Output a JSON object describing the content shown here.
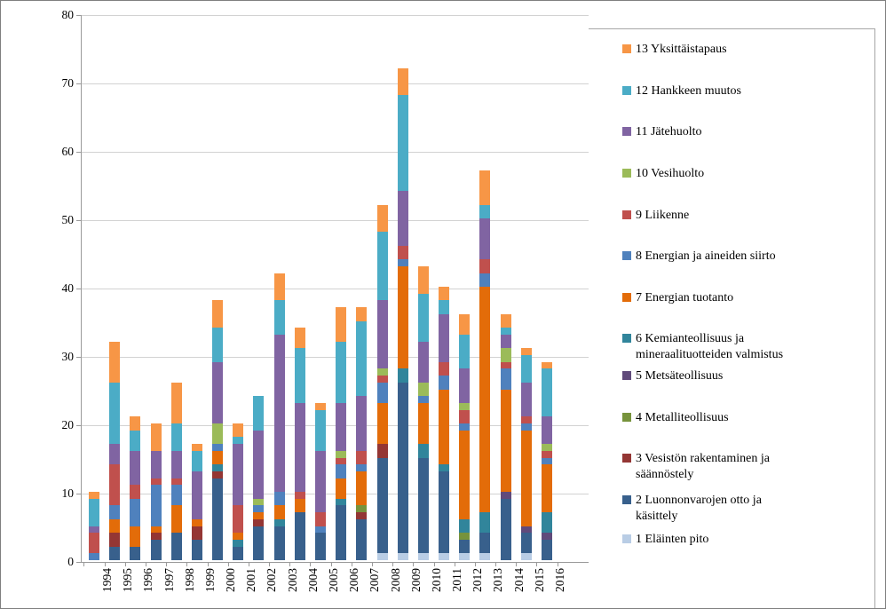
{
  "chart_data": {
    "type": "bar",
    "stacked": true,
    "title": "",
    "xlabel": "",
    "ylabel": "",
    "ylim": [
      0,
      80
    ],
    "yticks": [
      0,
      10,
      20,
      30,
      40,
      50,
      60,
      70,
      80
    ],
    "grid": "horizontal",
    "legend_position": "right",
    "categories": [
      "1994",
      "1995",
      "1996",
      "1997",
      "1998",
      "1999",
      "2000",
      "2001",
      "2002",
      "2003",
      "2004",
      "2005",
      "2006",
      "2007",
      "2008",
      "2009",
      "2010",
      "2011",
      "2012",
      "2013",
      "2014",
      "2015",
      "2016"
    ],
    "series": [
      {
        "key": 1,
        "label": "1 Eläinten pito",
        "color": "#B9CDE5",
        "values": [
          0,
          0,
          0,
          0,
          0,
          0,
          0,
          0,
          0,
          0,
          0,
          0,
          0,
          0,
          1,
          1,
          1,
          1,
          1,
          1,
          0,
          1,
          0
        ]
      },
      {
        "key": 2,
        "label": "2 Luonnonvarojen otto ja käsittely",
        "color": "#38608C",
        "values": [
          0,
          2,
          2,
          3,
          4,
          3,
          12,
          2,
          5,
          5,
          7,
          4,
          8,
          6,
          14,
          25,
          14,
          12,
          2,
          3,
          9,
          3,
          3
        ]
      },
      {
        "key": 3,
        "label": "3 Vesistön rakentaminen ja säännöstely",
        "color": "#943634",
        "values": [
          0,
          2,
          0,
          1,
          0,
          2,
          1,
          0,
          1,
          0,
          0,
          0,
          0,
          1,
          2,
          0,
          0,
          0,
          0,
          0,
          0,
          0,
          0
        ]
      },
      {
        "key": 4,
        "label": "4 Metalliteollisuus",
        "color": "#77933C",
        "values": [
          0,
          0,
          0,
          0,
          0,
          0,
          0,
          0,
          0,
          0,
          0,
          0,
          0,
          1,
          0,
          0,
          0,
          0,
          1,
          0,
          0,
          0,
          0
        ]
      },
      {
        "key": 5,
        "label": "5 Metsäteollisuus",
        "color": "#604A7B",
        "values": [
          0,
          0,
          0,
          0,
          0,
          0,
          0,
          0,
          0,
          0,
          0,
          0,
          0,
          0,
          0,
          0,
          0,
          0,
          0,
          0,
          1,
          1,
          1
        ]
      },
      {
        "key": 6,
        "label": "6 Kemianteollisuus ja mineraalituotteiden valmistus",
        "color": "#31859B",
        "values": [
          0,
          0,
          0,
          0,
          0,
          0,
          1,
          1,
          0,
          1,
          0,
          0,
          1,
          0,
          0,
          2,
          2,
          1,
          2,
          3,
          0,
          0,
          3
        ]
      },
      {
        "key": 7,
        "label": "7 Energian tuotanto",
        "color": "#E36C09",
        "values": [
          0,
          2,
          3,
          1,
          4,
          1,
          2,
          1,
          1,
          2,
          2,
          0,
          3,
          5,
          6,
          15,
          6,
          11,
          13,
          33,
          15,
          14,
          7
        ]
      },
      {
        "key": 8,
        "label": "8 Energian ja aineiden siirto",
        "color": "#4F81BD",
        "values": [
          1,
          2,
          4,
          6,
          3,
          0,
          1,
          0,
          1,
          2,
          0,
          1,
          2,
          1,
          3,
          1,
          1,
          2,
          1,
          2,
          3,
          1,
          1
        ]
      },
      {
        "key": 9,
        "label": "9 Liikenne",
        "color": "#C0504D",
        "values": [
          3,
          6,
          2,
          1,
          1,
          0,
          0,
          4,
          0,
          0,
          1,
          2,
          1,
          2,
          1,
          2,
          0,
          2,
          2,
          2,
          1,
          1,
          1
        ]
      },
      {
        "key": 10,
        "label": "10 Vesihuolto",
        "color": "#9BBB59",
        "values": [
          0,
          0,
          0,
          0,
          0,
          0,
          3,
          0,
          1,
          0,
          0,
          0,
          1,
          0,
          1,
          0,
          2,
          0,
          1,
          0,
          2,
          0,
          1
        ]
      },
      {
        "key": 11,
        "label": "11 Jätehuolto",
        "color": "#8064A2",
        "values": [
          1,
          3,
          5,
          4,
          4,
          7,
          9,
          9,
          10,
          23,
          13,
          9,
          7,
          8,
          10,
          8,
          6,
          7,
          5,
          6,
          2,
          5,
          4
        ]
      },
      {
        "key": 12,
        "label": "12 Hankkeen muutos",
        "color": "#4BACC6",
        "values": [
          4,
          9,
          3,
          0,
          4,
          3,
          5,
          1,
          5,
          5,
          8,
          6,
          9,
          11,
          10,
          14,
          7,
          2,
          5,
          2,
          1,
          4,
          7
        ]
      },
      {
        "key": 13,
        "label": "13 Yksittäistapaus",
        "color": "#F79646",
        "values": [
          1,
          6,
          2,
          4,
          6,
          1,
          4,
          2,
          0,
          4,
          3,
          1,
          5,
          2,
          4,
          4,
          4,
          2,
          3,
          5,
          2,
          1,
          1
        ]
      }
    ]
  }
}
